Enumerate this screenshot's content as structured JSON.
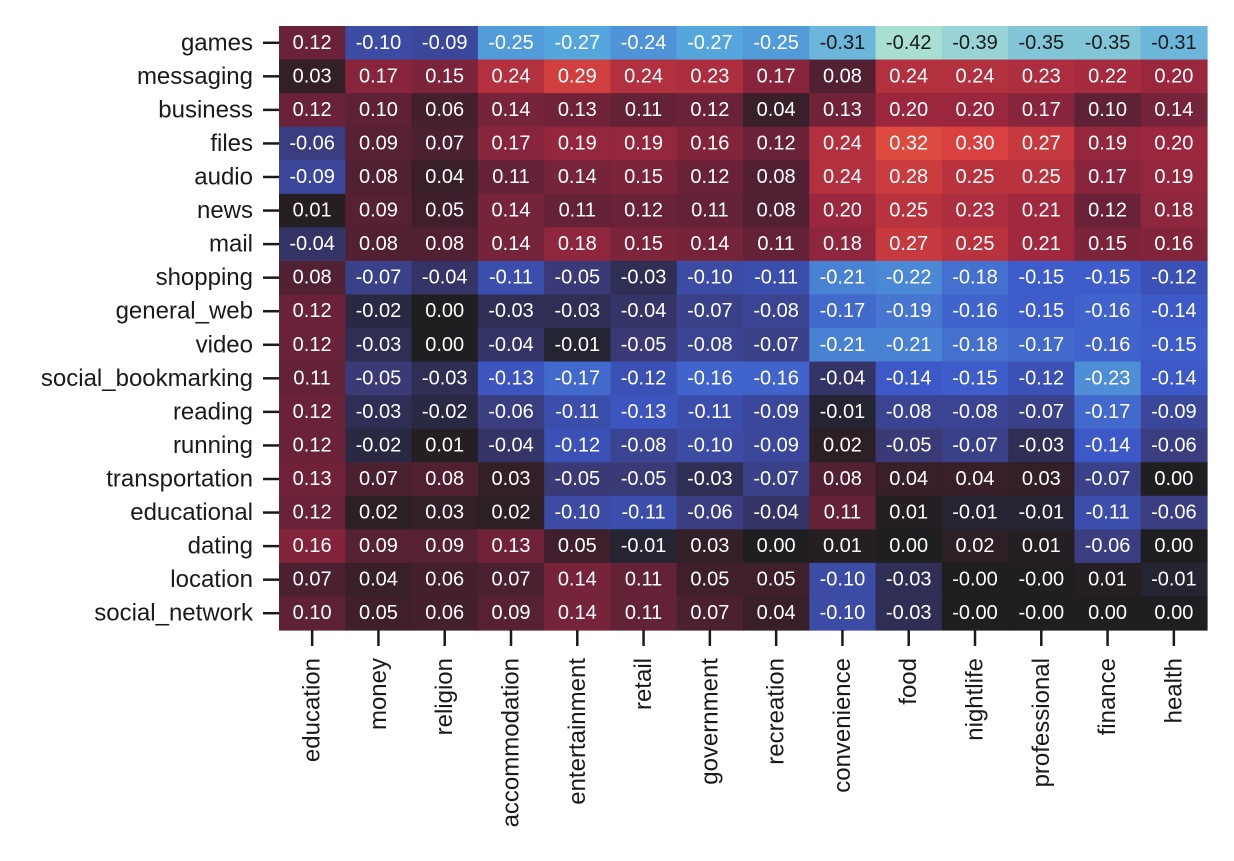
{
  "chart_data": {
    "type": "heatmap",
    "title": "",
    "xlabel": "",
    "ylabel": "",
    "rows": [
      "games",
      "messaging",
      "business",
      "files",
      "audio",
      "news",
      "mail",
      "shopping",
      "general_web",
      "video",
      "social_bookmarking",
      "reading",
      "running",
      "transportation",
      "educational",
      "dating",
      "location",
      "social_network"
    ],
    "columns": [
      "education",
      "money",
      "religion",
      "accommodation",
      "entertainment",
      "retail",
      "government",
      "recreation",
      "convenience",
      "food",
      "nightlife",
      "professional",
      "finance",
      "health"
    ],
    "values": [
      [
        0.12,
        -0.1,
        -0.09,
        -0.25,
        -0.27,
        -0.24,
        -0.27,
        -0.25,
        -0.31,
        -0.42,
        -0.39,
        -0.35,
        -0.35,
        -0.31
      ],
      [
        0.03,
        0.17,
        0.15,
        0.24,
        0.29,
        0.24,
        0.23,
        0.17,
        0.08,
        0.24,
        0.24,
        0.23,
        0.22,
        0.2
      ],
      [
        0.12,
        0.1,
        0.06,
        0.14,
        0.13,
        0.11,
        0.12,
        0.04,
        0.13,
        0.2,
        0.2,
        0.17,
        0.1,
        0.14
      ],
      [
        -0.06,
        0.09,
        0.07,
        0.17,
        0.19,
        0.19,
        0.16,
        0.12,
        0.24,
        0.32,
        0.3,
        0.27,
        0.19,
        0.2
      ],
      [
        -0.09,
        0.08,
        0.04,
        0.11,
        0.14,
        0.15,
        0.12,
        0.08,
        0.24,
        0.28,
        0.25,
        0.25,
        0.17,
        0.19
      ],
      [
        0.01,
        0.09,
        0.05,
        0.14,
        0.11,
        0.12,
        0.11,
        0.08,
        0.2,
        0.25,
        0.23,
        0.21,
        0.12,
        0.18
      ],
      [
        -0.04,
        0.08,
        0.08,
        0.14,
        0.18,
        0.15,
        0.14,
        0.11,
        0.18,
        0.27,
        0.25,
        0.21,
        0.15,
        0.16
      ],
      [
        0.08,
        -0.07,
        -0.04,
        -0.11,
        -0.05,
        -0.03,
        -0.1,
        -0.11,
        -0.21,
        -0.22,
        -0.18,
        -0.15,
        -0.15,
        -0.12
      ],
      [
        0.12,
        -0.02,
        0.0,
        -0.03,
        -0.03,
        -0.04,
        -0.07,
        -0.08,
        -0.17,
        -0.19,
        -0.16,
        -0.15,
        -0.16,
        -0.14
      ],
      [
        0.12,
        -0.03,
        0.0,
        -0.04,
        -0.01,
        -0.05,
        -0.08,
        -0.07,
        -0.21,
        -0.21,
        -0.18,
        -0.17,
        -0.16,
        -0.15
      ],
      [
        0.11,
        -0.05,
        -0.03,
        -0.13,
        -0.17,
        -0.12,
        -0.16,
        -0.16,
        -0.04,
        -0.14,
        -0.15,
        -0.12,
        -0.23,
        -0.14
      ],
      [
        0.12,
        -0.03,
        -0.02,
        -0.06,
        -0.11,
        -0.13,
        -0.11,
        -0.09,
        -0.01,
        -0.08,
        -0.08,
        -0.07,
        -0.17,
        -0.09
      ],
      [
        0.12,
        -0.02,
        0.01,
        -0.04,
        -0.12,
        -0.08,
        -0.1,
        -0.09,
        0.02,
        -0.05,
        -0.07,
        -0.03,
        -0.14,
        -0.06
      ],
      [
        0.13,
        0.07,
        0.08,
        0.03,
        -0.05,
        -0.05,
        -0.03,
        -0.07,
        0.08,
        0.04,
        0.04,
        0.03,
        -0.07,
        0.0
      ],
      [
        0.12,
        0.02,
        0.03,
        0.02,
        -0.1,
        -0.11,
        -0.06,
        -0.04,
        0.11,
        0.01,
        -0.01,
        -0.01,
        -0.11,
        -0.06
      ],
      [
        0.16,
        0.09,
        0.09,
        0.13,
        0.05,
        -0.01,
        0.03,
        0.0,
        0.01,
        0.0,
        0.02,
        0.01,
        -0.06,
        0.0
      ],
      [
        0.07,
        0.04,
        0.06,
        0.07,
        0.14,
        0.11,
        0.05,
        0.05,
        -0.1,
        -0.03,
        -0.0,
        -0.0,
        0.01,
        -0.01
      ],
      [
        0.1,
        0.05,
        0.06,
        0.09,
        0.14,
        0.11,
        0.07,
        0.04,
        -0.1,
        -0.03,
        -0.0,
        -0.0,
        0.0,
        0.0
      ]
    ],
    "labels": [
      [
        "0.12",
        "-0.10",
        "-0.09",
        "-0.25",
        "-0.27",
        "-0.24",
        "-0.27",
        "-0.25",
        "-0.31",
        "-0.42",
        "-0.39",
        "-0.35",
        "-0.35",
        "-0.31"
      ],
      [
        "0.03",
        "0.17",
        "0.15",
        "0.24",
        "0.29",
        "0.24",
        "0.23",
        "0.17",
        "0.08",
        "0.24",
        "0.24",
        "0.23",
        "0.22",
        "0.20"
      ],
      [
        "0.12",
        "0.10",
        "0.06",
        "0.14",
        "0.13",
        "0.11",
        "0.12",
        "0.04",
        "0.13",
        "0.20",
        "0.20",
        "0.17",
        "0.10",
        "0.14"
      ],
      [
        "-0.06",
        "0.09",
        "0.07",
        "0.17",
        "0.19",
        "0.19",
        "0.16",
        "0.12",
        "0.24",
        "0.32",
        "0.30",
        "0.27",
        "0.19",
        "0.20"
      ],
      [
        "-0.09",
        "0.08",
        "0.04",
        "0.11",
        "0.14",
        "0.15",
        "0.12",
        "0.08",
        "0.24",
        "0.28",
        "0.25",
        "0.25",
        "0.17",
        "0.19"
      ],
      [
        "0.01",
        "0.09",
        "0.05",
        "0.14",
        "0.11",
        "0.12",
        "0.11",
        "0.08",
        "0.20",
        "0.25",
        "0.23",
        "0.21",
        "0.12",
        "0.18"
      ],
      [
        "-0.04",
        "0.08",
        "0.08",
        "0.14",
        "0.18",
        "0.15",
        "0.14",
        "0.11",
        "0.18",
        "0.27",
        "0.25",
        "0.21",
        "0.15",
        "0.16"
      ],
      [
        "0.08",
        "-0.07",
        "-0.04",
        "-0.11",
        "-0.05",
        "-0.03",
        "-0.10",
        "-0.11",
        "-0.21",
        "-0.22",
        "-0.18",
        "-0.15",
        "-0.15",
        "-0.12"
      ],
      [
        "0.12",
        "-0.02",
        "0.00",
        "-0.03",
        "-0.03",
        "-0.04",
        "-0.07",
        "-0.08",
        "-0.17",
        "-0.19",
        "-0.16",
        "-0.15",
        "-0.16",
        "-0.14"
      ],
      [
        "0.12",
        "-0.03",
        "0.00",
        "-0.04",
        "-0.01",
        "-0.05",
        "-0.08",
        "-0.07",
        "-0.21",
        "-0.21",
        "-0.18",
        "-0.17",
        "-0.16",
        "-0.15"
      ],
      [
        "0.11",
        "-0.05",
        "-0.03",
        "-0.13",
        "-0.17",
        "-0.12",
        "-0.16",
        "-0.16",
        "-0.04",
        "-0.14",
        "-0.15",
        "-0.12",
        "-0.23",
        "-0.14"
      ],
      [
        "0.12",
        "-0.03",
        "-0.02",
        "-0.06",
        "-0.11",
        "-0.13",
        "-0.11",
        "-0.09",
        "-0.01",
        "-0.08",
        "-0.08",
        "-0.07",
        "-0.17",
        "-0.09"
      ],
      [
        "0.12",
        "-0.02",
        "0.01",
        "-0.04",
        "-0.12",
        "-0.08",
        "-0.10",
        "-0.09",
        "0.02",
        "-0.05",
        "-0.07",
        "-0.03",
        "-0.14",
        "-0.06"
      ],
      [
        "0.13",
        "0.07",
        "0.08",
        "0.03",
        "-0.05",
        "-0.05",
        "-0.03",
        "-0.07",
        "0.08",
        "0.04",
        "0.04",
        "0.03",
        "-0.07",
        "0.00"
      ],
      [
        "0.12",
        "0.02",
        "0.03",
        "0.02",
        "-0.10",
        "-0.11",
        "-0.06",
        "-0.04",
        "0.11",
        "0.01",
        "-0.01",
        "-0.01",
        "-0.11",
        "-0.06"
      ],
      [
        "0.16",
        "0.09",
        "0.09",
        "0.13",
        "0.05",
        "-0.01",
        "0.03",
        "0.00",
        "0.01",
        "0.00",
        "0.02",
        "0.01",
        "-0.06",
        "0.00"
      ],
      [
        "0.07",
        "0.04",
        "0.06",
        "0.07",
        "0.14",
        "0.11",
        "0.05",
        "0.05",
        "-0.10",
        "-0.03",
        "-0.00",
        "-0.00",
        "0.01",
        "-0.01"
      ],
      [
        "0.10",
        "0.05",
        "0.06",
        "0.09",
        "0.14",
        "0.11",
        "0.07",
        "0.04",
        "-0.10",
        "-0.03",
        "-0.00",
        "-0.00",
        "0.00",
        "0.00"
      ]
    ],
    "colorscale": "diverging (icefire)",
    "vmin": -0.42,
    "vmax": 0.42,
    "colorbar": false,
    "grid": false,
    "colors": {
      "negative_light": "#a9dfd3",
      "negative_mid": "#54a6dc",
      "negative_deep": "#3d59c9",
      "negative_dark": "#3a3a78",
      "center": "#1f1e21",
      "positive_dark": "#5e2136",
      "positive_deep": "#a0283f",
      "positive_mid": "#d9423f",
      "positive_light": "#f07e3b",
      "text_dark": "#1a1a1a",
      "text_light": "#ffffff"
    }
  }
}
